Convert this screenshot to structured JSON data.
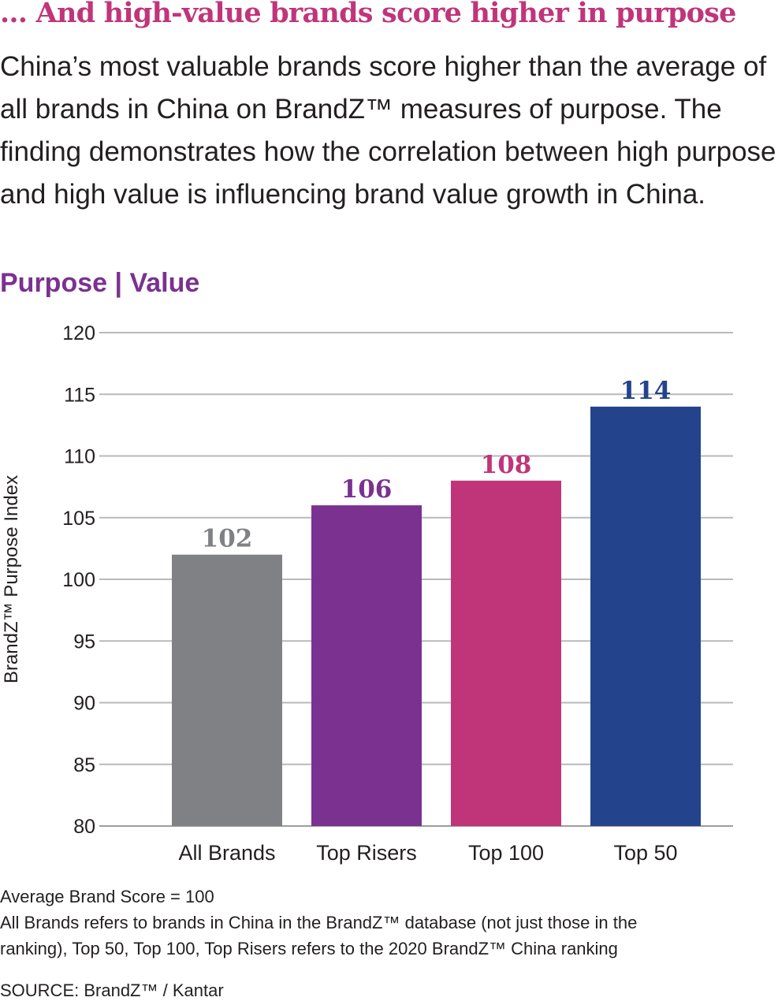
{
  "headline": "… And high-value brands score higher in purpose",
  "intro": "China’s most valuable brands score higher than the average of all brands in China on BrandZ™ measures of purpose. The finding demonstrates how the correlation between high purpose and high value is influencing brand value growth in China.",
  "subhead": "Purpose | Value",
  "chart_data": {
    "type": "bar",
    "categories": [
      "All Brands",
      "Top Risers",
      "Top 100",
      "Top 50"
    ],
    "values": [
      102,
      106,
      108,
      114
    ],
    "data_labels": [
      "102",
      "106",
      "108",
      "114"
    ],
    "colors": [
      "#808184",
      "#7b3190",
      "#c0357a",
      "#23448c"
    ],
    "ylabel": "BrandZ™ Purpose Index",
    "xlabel": "",
    "ylim": [
      80,
      120
    ],
    "yticks": [
      "80",
      "85",
      "90",
      "95",
      "100",
      "105",
      "110",
      "115",
      "120"
    ],
    "grid": true
  },
  "notes": {
    "line1": "Average Brand Score = 100",
    "line2": "All Brands refers to brands in China in the BrandZ™ database (not just those in the",
    "line3": "ranking), Top 50, Top 100, Top Risers refers to the 2020 BrandZ™ China ranking"
  },
  "source": "SOURCE: BrandZ™ / Kantar"
}
